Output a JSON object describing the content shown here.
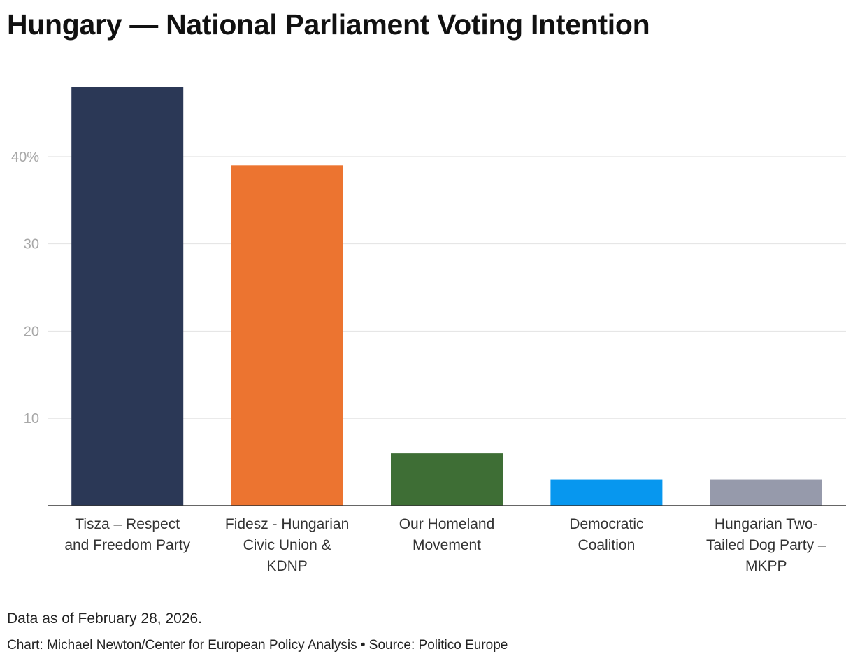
{
  "chart_data": {
    "type": "bar",
    "title": "Hungary — National Parliament Voting Intention",
    "xlabel": "",
    "ylabel": "",
    "ylim": [
      0,
      48
    ],
    "yticks": [
      10,
      20,
      30,
      40
    ],
    "ytick_labels": [
      "10",
      "20",
      "30",
      "40%"
    ],
    "grid": true,
    "categories": [
      "Tisza – Respect and Freedom Party",
      "Fidesz - Hungarian Civic Union & KDNP",
      "Our Homeland Movement",
      "Democratic Coalition",
      "Hungarian Two-Tailed Dog Party – MKPP"
    ],
    "category_lines": [
      [
        "Tisza – Respect",
        "and Freedom Party"
      ],
      [
        "Fidesz - Hungarian",
        "Civic Union &",
        "KDNP"
      ],
      [
        "Our Homeland",
        "Movement"
      ],
      [
        "Democratic",
        "Coalition"
      ],
      [
        "Hungarian Two-",
        "Tailed Dog Party –",
        "MKPP"
      ]
    ],
    "values": [
      48,
      39,
      6,
      3,
      3
    ],
    "colors": [
      "#2b3856",
      "#ec7430",
      "#3e6e35",
      "#0797ef",
      "#969aab"
    ]
  },
  "footer": {
    "note": "Data as of February 28, 2026.",
    "credit": "Chart: Michael Newton/Center for European Policy Analysis • Source: Politico Europe"
  }
}
